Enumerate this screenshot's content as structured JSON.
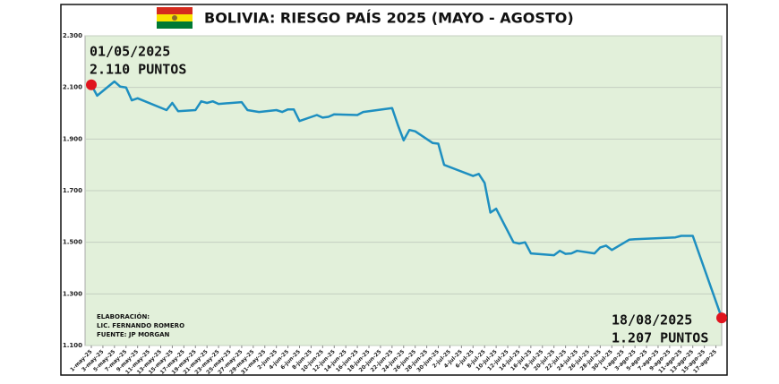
{
  "chart_data": {
    "type": "line",
    "title": "BOLIVIA: RIESGO PAÍS 2025 (MAYO - AGOSTO)",
    "x": [
      "1-may-25",
      "2-may-25",
      "5-may-25",
      "6-may-25",
      "7-may-25",
      "8-may-25",
      "9-may-25",
      "14-may-25",
      "15-may-25",
      "16-may-25",
      "19-may-25",
      "20-may-25",
      "21-may-25",
      "22-may-25",
      "23-may-25",
      "27-may-25",
      "28-may-25",
      "30-may-25",
      "2-jun-25",
      "3-jun-25",
      "4-jun-25",
      "5-jun-25",
      "6-jun-25",
      "9-jun-25",
      "10-jun-25",
      "11-jun-25",
      "12-jun-25",
      "16-jun-25",
      "17-jun-25",
      "22-jun-25",
      "23-jun-25",
      "24-jun-25",
      "25-jun-25",
      "26-jun-25",
      "29-jun-25",
      "30-jun-25",
      "1-jul-25",
      "6-jul-25",
      "7-jul-25",
      "8-jul-25",
      "9-jul-25",
      "10-jul-25",
      "13-jul-25",
      "14-jul-25",
      "15-jul-25",
      "16-jul-25",
      "20-jul-25",
      "21-jul-25",
      "22-jul-25",
      "23-jul-25",
      "24-jul-25",
      "27-jul-25",
      "28-jul-25",
      "29-jul-25",
      "30-jul-25",
      "2-ago-25",
      "3-ago-25",
      "7-ago-25",
      "10-ago-25",
      "11-ago-25",
      "13-ago-25",
      "18-ago-25"
    ],
    "values": [
      2110,
      2068,
      2123,
      2103,
      2100,
      2050,
      2058,
      2012,
      2040,
      2008,
      2012,
      2046,
      2040,
      2046,
      2036,
      2043,
      2012,
      2005,
      2012,
      2005,
      2015,
      2015,
      1970,
      1993,
      1983,
      1986,
      1996,
      1993,
      2005,
      2020,
      1955,
      1895,
      1935,
      1930,
      1885,
      1882,
      1800,
      1757,
      1765,
      1730,
      1615,
      1630,
      1500,
      1495,
      1500,
      1457,
      1450,
      1467,
      1455,
      1457,
      1467,
      1457,
      1480,
      1487,
      1470,
      1510,
      1512,
      1516,
      1519,
      1525,
      1525,
      1207
    ],
    "color": "#1e8fc0",
    "xlim": [
      "1-may-25",
      "18-ago-25"
    ],
    "xticks": [
      "1-may-25",
      "3-may-25",
      "5-may-25",
      "7-may-25",
      "9-may-25",
      "11-may-25",
      "13-may-25",
      "15-may-25",
      "17-may-25",
      "19-may-25",
      "21-may-25",
      "23-may-25",
      "25-may-25",
      "27-may-25",
      "29-may-25",
      "31-may-25",
      "2-jun-25",
      "4-jun-25",
      "6-jun-25",
      "8-jun-25",
      "10-jun-25",
      "12-jun-25",
      "14-jun-25",
      "16-jun-25",
      "18-jun-25",
      "20-jun-25",
      "22-jun-25",
      "24-jun-25",
      "26-jun-25",
      "28-jun-25",
      "30-jun-25",
      "2-jul-25",
      "4-jul-25",
      "6-jul-25",
      "8-jul-25",
      "10-jul-25",
      "12-jul-25",
      "14-jul-25",
      "16-jul-25",
      "18-jul-25",
      "20-jul-25",
      "22-jul-25",
      "24-jul-25",
      "26-jul-25",
      "28-jul-25",
      "30-jul-25",
      "1-ago-25",
      "3-ago-25",
      "5-ago-25",
      "7-ago-25",
      "9-ago-25",
      "11-ago-25",
      "13-ago-25",
      "15-ago-25",
      "17-ago-25"
    ],
    "ylim": [
      1100,
      2300
    ],
    "yticks": [
      {
        "value": 1100,
        "label": "1.100"
      },
      {
        "value": 1300,
        "label": "1.300"
      },
      {
        "value": 1500,
        "label": "1.500"
      },
      {
        "value": 1700,
        "label": "1.700"
      },
      {
        "value": 1900,
        "label": "1.900"
      },
      {
        "value": 2100,
        "label": "2.100"
      },
      {
        "value": 2300,
        "label": "2.300"
      }
    ],
    "grid": true,
    "annotations": {
      "start_date": "01/05/2025",
      "start_value": "2.110 PUNTOS",
      "end_date": "18/08/2025",
      "end_value": "1.207 PUNTOS"
    },
    "credits": [
      "ELABORACIÓN:",
      "LIC. FERNANDO ROMERO",
      "FUENTE: JP MORGAN"
    ]
  }
}
